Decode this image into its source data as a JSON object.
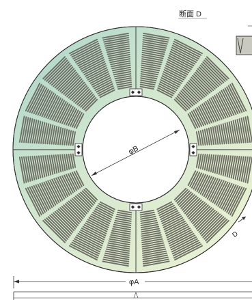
{
  "drawing": {
    "section_label": "断面 D",
    "outer_diameter_label": "φA",
    "inner_diameter_label": "φB",
    "section_marker_label": "D"
  },
  "grating": {
    "segment_count": 4,
    "wedges_per_segment": 5,
    "colors": {
      "ring_fill_light": "#eaf2d6",
      "ring_fill_teal": "#bfdccf",
      "slot_fill": "#6e6e64",
      "outline": "#2c2c2c",
      "bolt_fill": "#ffffff"
    }
  }
}
